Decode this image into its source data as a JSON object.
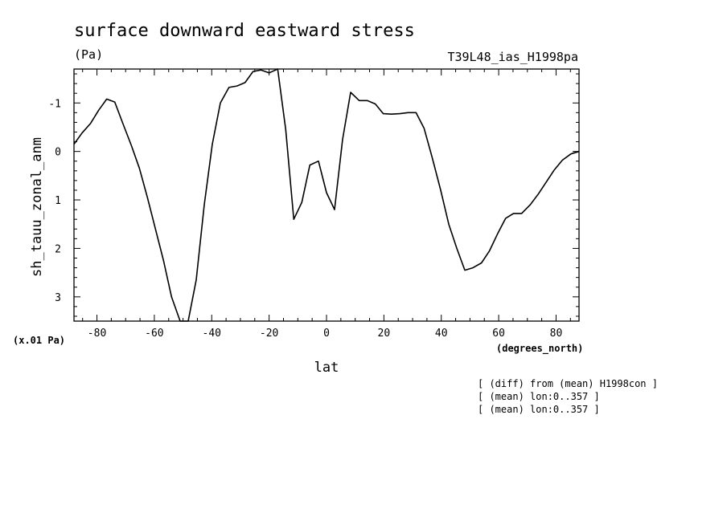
{
  "chart_data": {
    "type": "line",
    "title": "surface downward eastward stress",
    "units": "(Pa)",
    "run_label": "T39L48_ias_H1998pa",
    "ylabel": "sh_tauu_zonal_anm",
    "xlabel": "lat",
    "x_units": "(degrees_north)",
    "scale_note": "(x.01 Pa)",
    "xlim": [
      -88,
      88
    ],
    "ylim": [
      -1.7,
      3.5
    ],
    "y_inverted": true,
    "x_ticks": [
      -80,
      -60,
      -40,
      -20,
      0,
      20,
      40,
      60,
      80
    ],
    "x_tick_labels": [
      "-80",
      "-60",
      "-40",
      "-20",
      "0",
      "20",
      "40",
      "60",
      "80"
    ],
    "y_ticks": [
      -1,
      0,
      1,
      2,
      3
    ],
    "y_tick_labels": [
      "-1",
      "0",
      "1",
      "2",
      "3"
    ],
    "grid": false,
    "notes": [
      "[ (diff) from (mean) H1998con ]",
      "[ (mean) lon:0..357 ]",
      "[ (mean) lon:0..357 ]"
    ],
    "series": [
      {
        "x": [
          -88,
          -85.2,
          -82.2,
          -79.4,
          -76.6,
          -73.8,
          -71,
          -68,
          -65.2,
          -62.4,
          -59.6,
          -56.8,
          -54,
          -51,
          -48.2,
          -45.4,
          -42.6,
          -39.8,
          -37,
          -34,
          -31.2,
          -28.4,
          -25.6,
          -22.8,
          -20,
          -17,
          -14.2,
          -11.4,
          -8.6,
          -5.8,
          -2.8,
          0,
          2.8,
          5.6,
          8.4,
          11.4,
          14.2,
          17,
          19.8,
          22.6,
          25.6,
          28.4,
          31.2,
          34,
          36.8,
          39.8,
          42.6,
          45.4,
          48.2,
          51,
          54,
          56.8,
          59.6,
          62.4,
          65.2,
          68,
          71,
          73.8,
          76.6,
          79.4,
          82.2,
          85.2,
          88
        ],
        "values": [
          -0.15,
          -0.38,
          -0.58,
          -0.85,
          -1.08,
          -1.02,
          -0.58,
          -0.12,
          0.35,
          0.95,
          1.6,
          2.25,
          3.0,
          3.55,
          3.5,
          2.65,
          1.1,
          -0.15,
          -1.0,
          -1.32,
          -1.35,
          -1.42,
          -1.65,
          -1.68,
          -1.62,
          -1.73,
          -0.45,
          1.4,
          1.05,
          0.28,
          0.2,
          0.85,
          1.2,
          -0.25,
          -1.22,
          -1.05,
          -1.05,
          -0.98,
          -0.78,
          -0.77,
          -0.78,
          -0.8,
          -0.8,
          -0.48,
          0.12,
          0.8,
          1.5,
          2.0,
          2.45,
          2.4,
          2.3,
          2.05,
          1.7,
          1.38,
          1.28,
          1.28,
          1.1,
          0.88,
          0.63,
          0.38,
          0.18,
          0.05,
          0.0
        ]
      }
    ]
  }
}
